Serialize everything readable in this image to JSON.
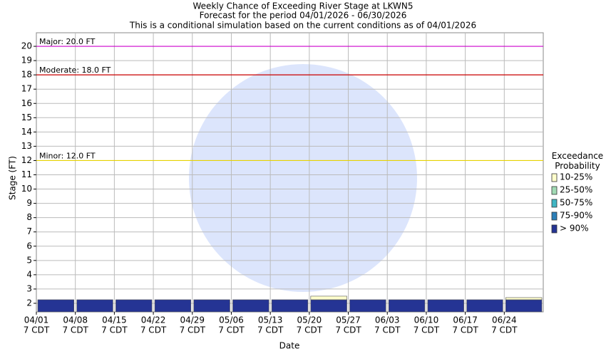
{
  "chart_data": {
    "type": "range_bar",
    "title": "Weekly Chance of Exceeding River Stage at LKWN5",
    "subtitle": "Forecast for the period 04/01/2026 - 06/30/2026",
    "note": "This is a conditional simulation based on the current conditions as of 04/01/2026",
    "y_label": "Stage (FT)",
    "x_label": "Date",
    "legend_title": "Exceedance Probability",
    "categories": [
      "04/01",
      "04/08",
      "04/15",
      "04/22",
      "04/29",
      "05/06",
      "05/13",
      "05/20",
      "05/27",
      "06/03",
      "06/10",
      "06/17",
      "06/24"
    ],
    "category_sublabels": [
      "7 CDT",
      "7 CDT",
      "7 CDT",
      "7 CDT",
      "7 CDT",
      "7 CDT",
      "7 CDT",
      "7 CDT",
      "7 CDT",
      "7 CDT",
      "7 CDT",
      "7 CDT",
      "7 CDT"
    ],
    "series": [
      {
        "name": "> 90%",
        "color": "#253494",
        "values": [
          2.25,
          2.25,
          2.25,
          2.25,
          2.25,
          2.25,
          2.25,
          2.25,
          2.25,
          2.25,
          2.25,
          2.25,
          2.25
        ]
      },
      {
        "name": "75-90%",
        "color": "#2c7fb8",
        "values": [
          null,
          null,
          null,
          null,
          null,
          null,
          null,
          null,
          null,
          null,
          null,
          null,
          null
        ]
      },
      {
        "name": "50-75%",
        "color": "#41b6c4",
        "values": [
          null,
          null,
          null,
          null,
          null,
          null,
          null,
          null,
          null,
          null,
          null,
          null,
          null
        ]
      },
      {
        "name": "25-50%",
        "color": "#a1dab4",
        "values": [
          null,
          null,
          null,
          null,
          null,
          null,
          null,
          null,
          null,
          null,
          null,
          null,
          null
        ]
      },
      {
        "name": "10-25%",
        "color": "#ffffcc",
        "values": [
          null,
          null,
          null,
          null,
          null,
          null,
          null,
          2.5,
          null,
          null,
          null,
          null,
          2.4
        ]
      }
    ],
    "thresholds": [
      {
        "label": "Major: 20.0 FT",
        "value": 20,
        "color": "#cc00cc"
      },
      {
        "label": "Moderate: 18.0 FT",
        "value": 18,
        "color": "#cc0000"
      },
      {
        "label": "Minor: 12.0 FT",
        "value": 12,
        "color": "#e6d200"
      }
    ],
    "ylim": [
      1.4,
      20.95
    ],
    "yticks": [
      2,
      3,
      4,
      5,
      6,
      7,
      8,
      9,
      10,
      11,
      12,
      13,
      14,
      15,
      16,
      17,
      18,
      19,
      20
    ],
    "grid": true
  }
}
